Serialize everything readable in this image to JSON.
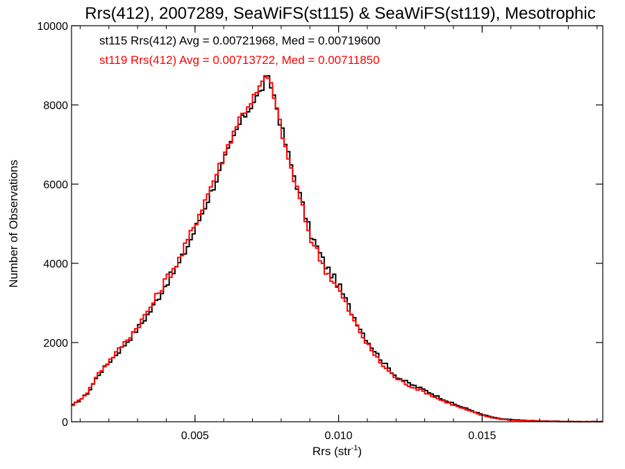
{
  "chart_data": {
    "type": "line",
    "style": "step-histogram",
    "title": "Rrs(412), 2007289, SeaWiFS(st115) & SeaWiFS(st119), Mesotrophic",
    "xlabel": "Rrs (str",
    "xlabel_sup": "-1",
    "xlabel_close": ")",
    "ylabel": "Number of Observations",
    "xlim": [
      0.0007,
      0.0192
    ],
    "ylim": [
      0,
      10000
    ],
    "x_ticks": [
      0.005,
      0.01,
      0.015
    ],
    "x_tick_labels": [
      "0.005",
      "0.010",
      "0.015"
    ],
    "y_ticks": [
      0,
      2000,
      4000,
      6000,
      8000,
      10000
    ],
    "y_tick_labels": [
      "0",
      "2000",
      "4000",
      "6000",
      "8000",
      "10000"
    ],
    "legend_position": "top-left",
    "series": [
      {
        "name": "st115",
        "color": "#000000",
        "legend": "st115 Rrs(412) Avg = 0.00721968, Med = 0.00719600",
        "points": [
          [
            0.0007,
            400
          ],
          [
            0.001,
            550
          ],
          [
            0.0013,
            750
          ],
          [
            0.0016,
            1150
          ],
          [
            0.002,
            1500
          ],
          [
            0.0025,
            1900
          ],
          [
            0.003,
            2350
          ],
          [
            0.0035,
            2850
          ],
          [
            0.004,
            3500
          ],
          [
            0.0045,
            4050
          ],
          [
            0.005,
            4850
          ],
          [
            0.0055,
            5700
          ],
          [
            0.006,
            6550
          ],
          [
            0.0065,
            7450
          ],
          [
            0.007,
            8050
          ],
          [
            0.0073,
            8350
          ],
          [
            0.0075,
            8700
          ],
          [
            0.0077,
            8400
          ],
          [
            0.008,
            7450
          ],
          [
            0.0083,
            6600
          ],
          [
            0.0087,
            5600
          ],
          [
            0.009,
            4800
          ],
          [
            0.0095,
            4000
          ],
          [
            0.01,
            3450
          ],
          [
            0.0105,
            2700
          ],
          [
            0.011,
            2050
          ],
          [
            0.0115,
            1550
          ],
          [
            0.012,
            1150
          ],
          [
            0.0125,
            950
          ],
          [
            0.013,
            800
          ],
          [
            0.0135,
            620
          ],
          [
            0.014,
            450
          ],
          [
            0.0145,
            320
          ],
          [
            0.015,
            180
          ],
          [
            0.0155,
            90
          ],
          [
            0.016,
            50
          ],
          [
            0.017,
            20
          ],
          [
            0.018,
            5
          ],
          [
            0.0192,
            0
          ]
        ]
      },
      {
        "name": "st119",
        "color": "#ff0000",
        "legend": "st119 Rrs(412) Avg = 0.00713722, Med = 0.00711850",
        "points": [
          [
            0.0007,
            400
          ],
          [
            0.001,
            560
          ],
          [
            0.0013,
            780
          ],
          [
            0.0016,
            1180
          ],
          [
            0.002,
            1530
          ],
          [
            0.0025,
            1950
          ],
          [
            0.003,
            2400
          ],
          [
            0.0035,
            2950
          ],
          [
            0.004,
            3600
          ],
          [
            0.0045,
            4150
          ],
          [
            0.005,
            5000
          ],
          [
            0.0055,
            5850
          ],
          [
            0.006,
            6700
          ],
          [
            0.0065,
            7600
          ],
          [
            0.007,
            8150
          ],
          [
            0.0073,
            8450
          ],
          [
            0.0074,
            8750
          ],
          [
            0.0077,
            8450
          ],
          [
            0.008,
            7350
          ],
          [
            0.0083,
            6500
          ],
          [
            0.0087,
            5500
          ],
          [
            0.009,
            4700
          ],
          [
            0.0095,
            3900
          ],
          [
            0.01,
            3350
          ],
          [
            0.0105,
            2600
          ],
          [
            0.011,
            1950
          ],
          [
            0.0115,
            1450
          ],
          [
            0.012,
            1100
          ],
          [
            0.0125,
            900
          ],
          [
            0.013,
            750
          ],
          [
            0.0135,
            570
          ],
          [
            0.014,
            420
          ],
          [
            0.0145,
            290
          ],
          [
            0.015,
            160
          ],
          [
            0.0155,
            80
          ],
          [
            0.016,
            40
          ],
          [
            0.017,
            15
          ],
          [
            0.018,
            4
          ],
          [
            0.0192,
            0
          ]
        ]
      }
    ]
  }
}
